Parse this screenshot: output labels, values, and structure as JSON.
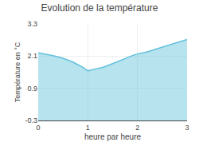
{
  "chart_data": {
    "type": "area",
    "title": "Evolution de la température",
    "xlabel": "heure par heure",
    "ylabel": "Température en °C",
    "x": [
      0,
      0.15,
      0.3,
      0.5,
      0.7,
      0.9,
      1.0,
      1.1,
      1.3,
      1.5,
      1.7,
      1.9,
      2.0,
      2.2,
      2.4,
      2.6,
      2.8,
      3.0
    ],
    "values": [
      2.22,
      2.18,
      2.12,
      2.02,
      1.88,
      1.68,
      1.55,
      1.6,
      1.68,
      1.82,
      1.98,
      2.12,
      2.18,
      2.26,
      2.38,
      2.5,
      2.62,
      2.72
    ],
    "xlim": [
      0,
      3
    ],
    "ylim": [
      -0.3,
      3.3
    ],
    "xticks": [
      0,
      1,
      2,
      3
    ],
    "yticks": [
      -0.3,
      0.9,
      2.1,
      3.3
    ],
    "color": "#60c0dc",
    "grid": true
  }
}
